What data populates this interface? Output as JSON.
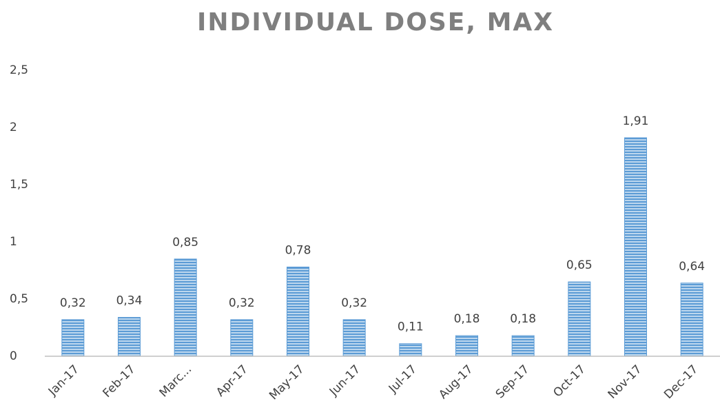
{
  "chart_data": {
    "type": "bar",
    "title": "INDIVIDUAL DOSE, MAX",
    "categories": [
      "Jan-17",
      "Feb-17",
      "Marc...",
      "Apr-17",
      "May-17",
      "Jun-17",
      "Jul-17",
      "Aug-17",
      "Sep-17",
      "Oct-17",
      "Nov-17",
      "Dec-17"
    ],
    "values": [
      0.32,
      0.34,
      0.85,
      0.32,
      0.78,
      0.32,
      0.11,
      0.18,
      0.18,
      0.65,
      1.91,
      0.64
    ],
    "value_labels": [
      "0,32",
      "0,34",
      "0,85",
      "0,32",
      "0,78",
      "0,32",
      "0,11",
      "0,18",
      "0,18",
      "0,65",
      "1,91",
      "0,64"
    ],
    "color": "#5b9bd5",
    "ylim": [
      0,
      2.5
    ],
    "yticks": [
      0,
      {
        "value": 0.5,
        "label": "0,5"
      },
      1,
      {
        "value": 1.5,
        "label": "1,5"
      },
      2,
      {
        "value": 2.5,
        "label": "2,5"
      }
    ],
    "grid": false
  }
}
